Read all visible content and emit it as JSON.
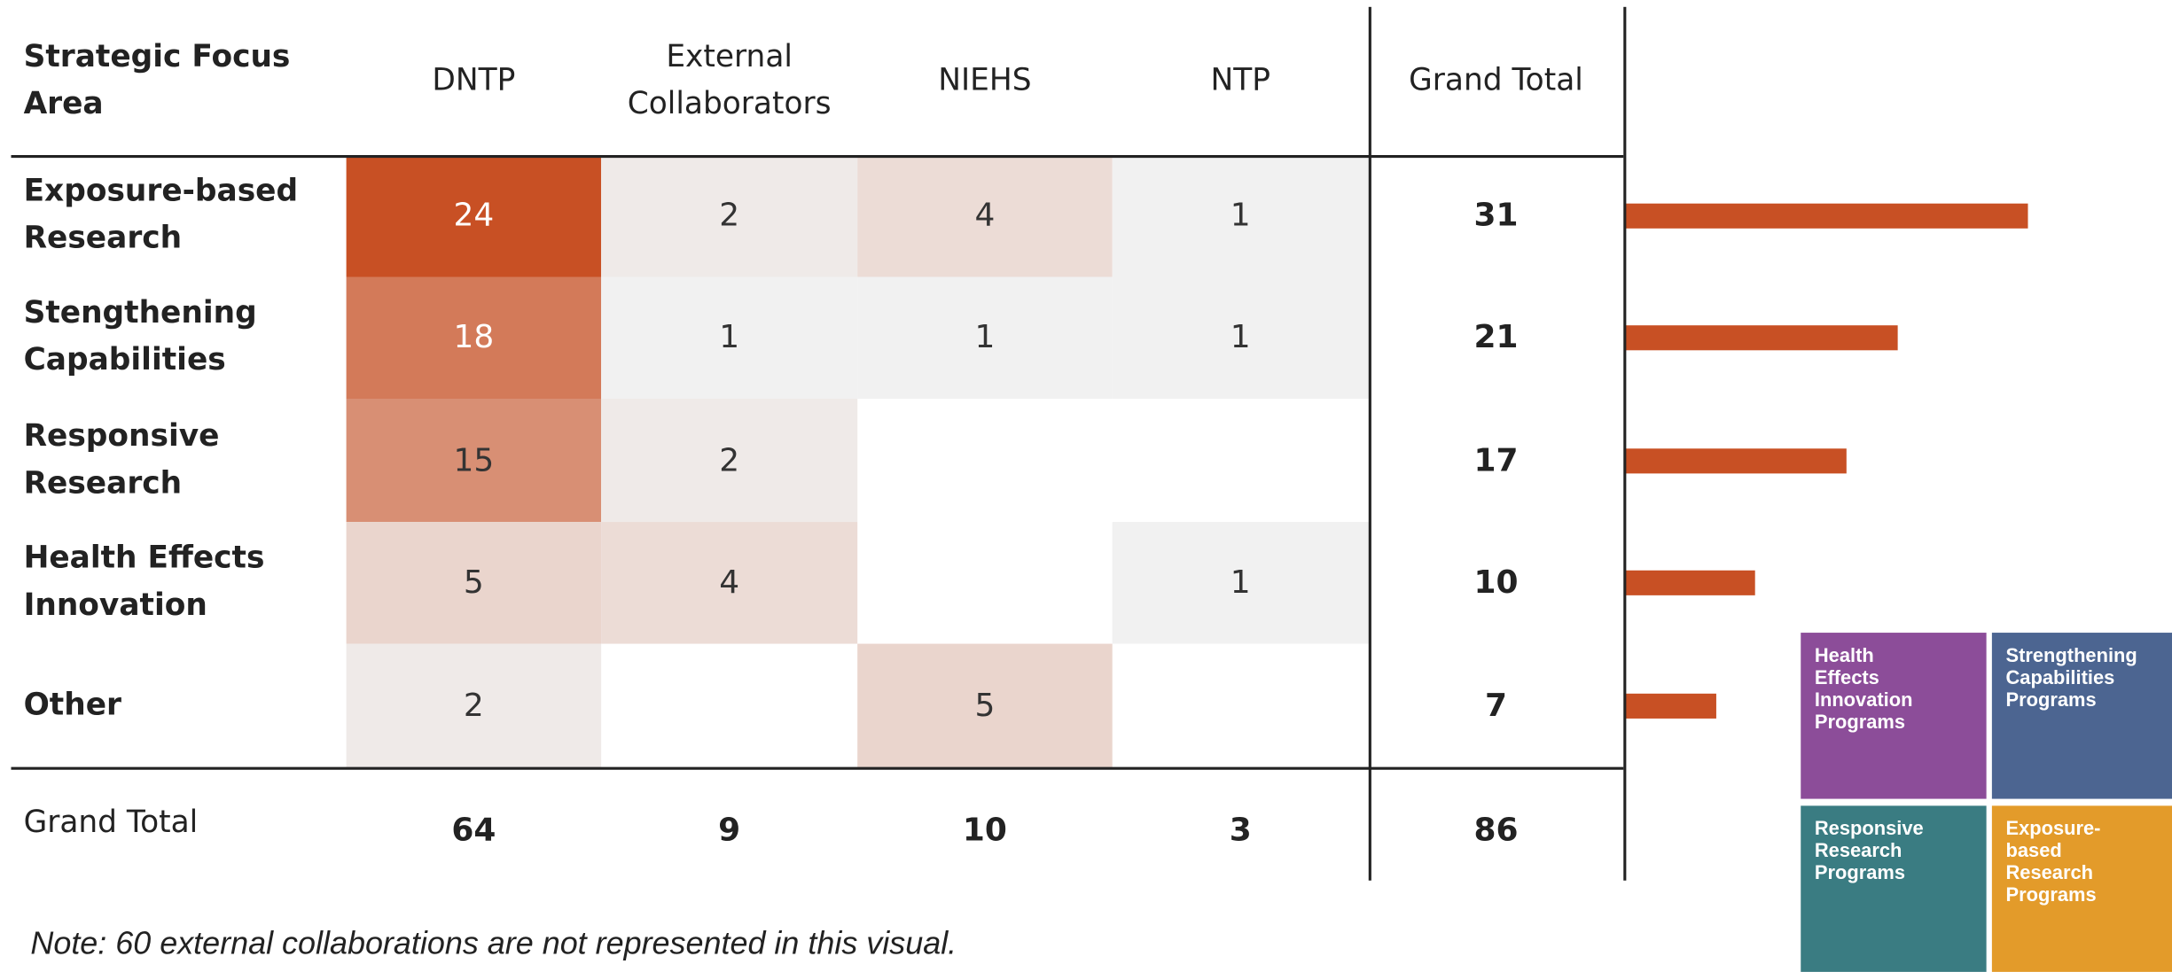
{
  "table": {
    "header": [
      "Strategic Focus Area",
      "DNTP",
      "External Collaborators",
      "NIEHS",
      "NTP",
      "Grand Total"
    ],
    "rows": [
      {
        "label": "Exposure-based Research",
        "values": [
          24,
          2,
          4,
          1
        ],
        "total": 31
      },
      {
        "label": "Stengthening Capabilities",
        "values": [
          18,
          1,
          1,
          1
        ],
        "total": 21
      },
      {
        "label": "Responsive Research",
        "values": [
          15,
          2,
          null,
          null
        ],
        "total": 17
      },
      {
        "label": "Health Effects Innovation",
        "values": [
          5,
          4,
          null,
          1
        ],
        "total": 10
      },
      {
        "label": "Other",
        "values": [
          2,
          null,
          5,
          null
        ],
        "total": 7
      }
    ],
    "grand_total": {
      "label": "Grand Total",
      "values": [
        64,
        9,
        10,
        3
      ],
      "total": 86
    },
    "low_color": "#f1f1f1",
    "high_color": "#c85024",
    "bar_color": "#c85024"
  },
  "note": "Note: 60 external collaborations are not represented in this visual.",
  "tiles": [
    {
      "label": "Health Effects Innovation Programs",
      "color": "#8c4d99"
    },
    {
      "label": "Strengthening Capabilities Programs",
      "color": "#4c6591"
    },
    {
      "label": "Responsive Research Programs",
      "color": "#3a7c82"
    },
    {
      "label": "Exposure-based Research Programs",
      "color": "#e39b2a"
    }
  ]
}
